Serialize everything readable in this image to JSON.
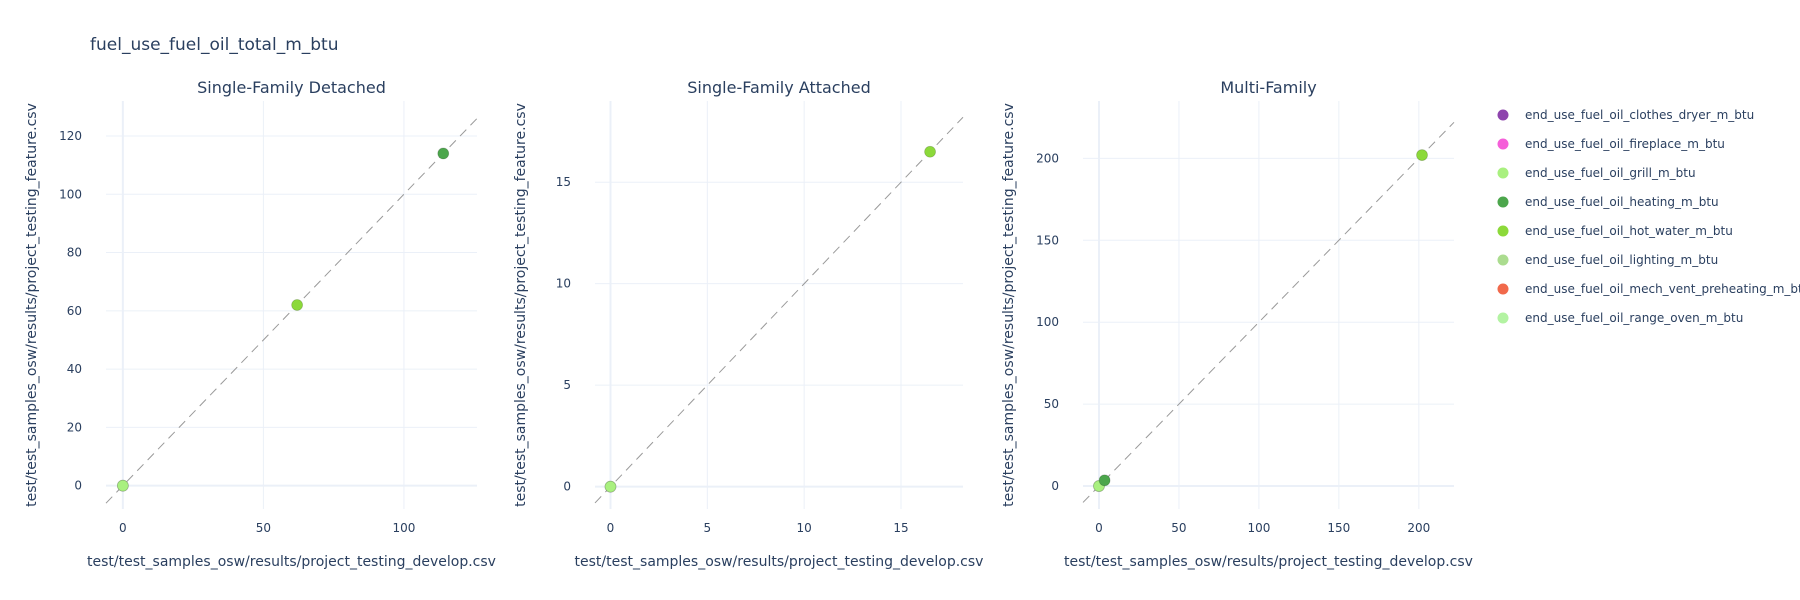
{
  "title": "fuel_use_fuel_oil_total_m_btu",
  "chart_data": {
    "type": "scatter",
    "legend": {
      "placement": "right",
      "entries": [
        {
          "name": "end_use_fuel_oil_clothes_dryer_m_btu",
          "color": "#8e44ad"
        },
        {
          "name": "end_use_fuel_oil_fireplace_m_btu",
          "color": "#f55fd9"
        },
        {
          "name": "end_use_fuel_oil_grill_m_btu",
          "color": "#a9f07f"
        },
        {
          "name": "end_use_fuel_oil_heating_m_btu",
          "color": "#4ca64c"
        },
        {
          "name": "end_use_fuel_oil_hot_water_m_btu",
          "color": "#8cd93a"
        },
        {
          "name": "end_use_fuel_oil_lighting_m_btu",
          "color": "#abdc8f"
        },
        {
          "name": "end_use_fuel_oil_mech_vent_preheating_m_btu",
          "color": "#f1694b"
        },
        {
          "name": "end_use_fuel_oil_range_oven_m_btu",
          "color": "#b3f3a2"
        }
      ]
    },
    "panels": [
      {
        "title": "Single-Family Detached",
        "xlabel": "test/test_samples_osw/results/project_testing_develop.csv",
        "ylabel": "test/test_samples_osw/results/project_testing_feature.csv",
        "xlim": [
          -6,
          126
        ],
        "ylim": [
          -8,
          132
        ],
        "xticks": [
          0,
          50,
          100
        ],
        "yticks": [
          0,
          20,
          40,
          60,
          80,
          100,
          120
        ],
        "grid": true,
        "diagonal": true,
        "points": [
          {
            "series": "end_use_fuel_oil_range_oven_m_btu",
            "x": 0,
            "y": 0
          },
          {
            "series": "end_use_fuel_oil_grill_m_btu",
            "x": 0,
            "y": 0
          },
          {
            "series": "end_use_fuel_oil_hot_water_m_btu",
            "x": 62,
            "y": 62
          },
          {
            "series": "end_use_fuel_oil_heating_m_btu",
            "x": 114,
            "y": 114
          }
        ]
      },
      {
        "title": "Single-Family Attached",
        "xlabel": "test/test_samples_osw/results/project_testing_develop.csv",
        "ylabel": "test/test_samples_osw/results/project_testing_feature.csv",
        "xlim": [
          -0.8,
          18.2
        ],
        "ylim": [
          -1.1,
          19
        ],
        "xticks": [
          0,
          5,
          10,
          15
        ],
        "yticks": [
          0,
          5,
          10,
          15
        ],
        "grid": true,
        "diagonal": true,
        "points": [
          {
            "series": "end_use_fuel_oil_range_oven_m_btu",
            "x": 0,
            "y": 0
          },
          {
            "series": "end_use_fuel_oil_grill_m_btu",
            "x": 0,
            "y": 0
          },
          {
            "series": "end_use_fuel_oil_hot_water_m_btu",
            "x": 16.5,
            "y": 16.5
          }
        ]
      },
      {
        "title": "Multi-Family",
        "xlabel": "test/test_samples_osw/results/project_testing_develop.csv",
        "ylabel": "test/test_samples_osw/results/project_testing_feature.csv",
        "xlim": [
          -10,
          222
        ],
        "ylim": [
          -14,
          235
        ],
        "xticks": [
          0,
          50,
          100,
          150,
          200
        ],
        "yticks": [
          0,
          50,
          100,
          150,
          200
        ],
        "grid": true,
        "diagonal": true,
        "points": [
          {
            "series": "end_use_fuel_oil_range_oven_m_btu",
            "x": 0,
            "y": 0
          },
          {
            "series": "end_use_fuel_oil_grill_m_btu",
            "x": 0,
            "y": 0
          },
          {
            "series": "end_use_fuel_oil_heating_m_btu",
            "x": 3.5,
            "y": 3.5
          },
          {
            "series": "end_use_fuel_oil_hot_water_m_btu",
            "x": 202,
            "y": 202
          }
        ]
      }
    ]
  }
}
